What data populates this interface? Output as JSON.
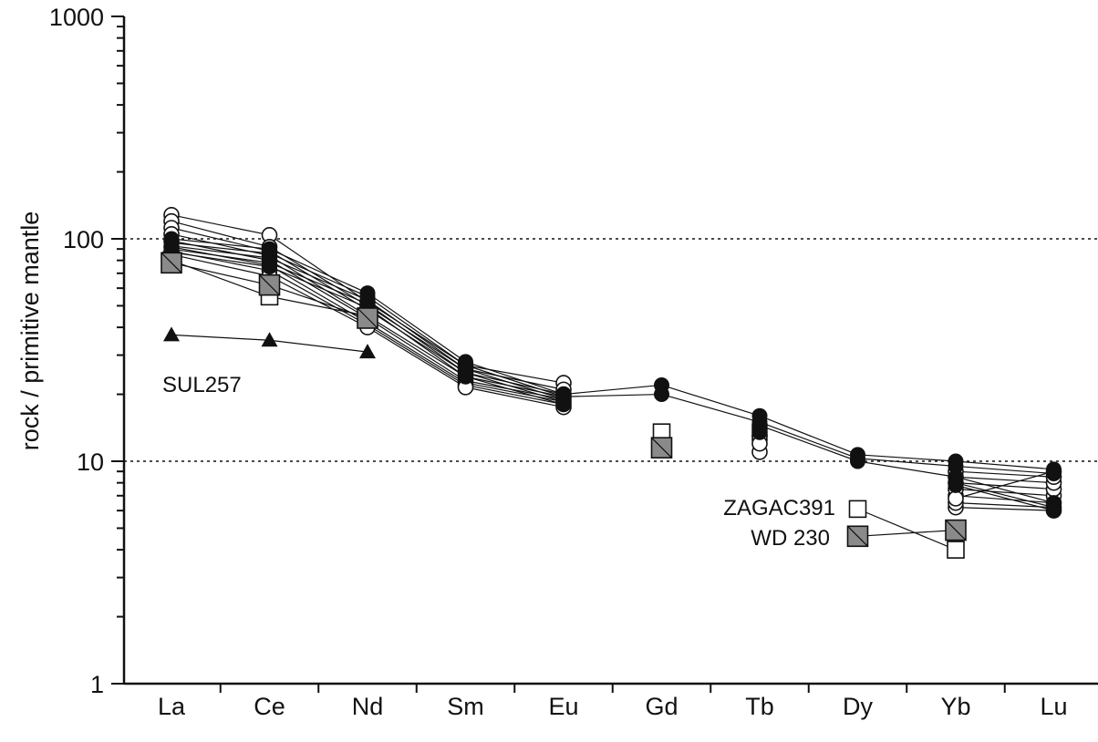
{
  "chart_data": {
    "type": "line",
    "title": "",
    "ylabel": "rock / primitive mantle",
    "xlabel": "",
    "yscale": "log",
    "ylim": [
      1,
      1000
    ],
    "y_ticks": [
      "1",
      "10",
      "100",
      "1000"
    ],
    "gridlines_dashed_at": [
      10,
      100
    ],
    "categories": [
      "La",
      "Ce",
      "Nd",
      "Sm",
      "Eu",
      "Gd",
      "Tb",
      "Dy",
      "Yb",
      "Lu"
    ],
    "series": [
      {
        "group": "open-circle",
        "values": [
          128,
          104,
          52,
          27,
          22.5,
          null,
          11,
          null,
          6.2,
          6.0
        ]
      },
      {
        "group": "open-circle",
        "values": [
          120,
          92,
          50,
          26,
          21,
          null,
          12.5,
          null,
          6.5,
          6.2
        ]
      },
      {
        "group": "open-circle",
        "values": [
          112,
          88,
          48,
          25,
          20,
          null,
          13,
          null,
          7.0,
          6.5
        ]
      },
      {
        "group": "open-circle",
        "values": [
          105,
          84,
          45,
          24,
          19.5,
          null,
          13.5,
          null,
          7.5,
          7.0
        ]
      },
      {
        "group": "open-circle",
        "values": [
          98,
          80,
          44,
          23,
          19,
          null,
          14,
          null,
          8.0,
          7.5
        ]
      },
      {
        "group": "open-circle",
        "values": [
          92,
          76,
          42,
          22.5,
          18.5,
          null,
          14.5,
          null,
          8.5,
          8.0
        ]
      },
      {
        "group": "open-circle",
        "values": [
          88,
          72,
          41,
          22,
          18,
          null,
          13,
          null,
          9.0,
          8.5
        ]
      },
      {
        "group": "open-circle",
        "values": [
          85,
          68,
          40,
          21.5,
          17.5,
          null,
          12,
          null,
          6.8,
          9.0
        ]
      },
      {
        "group": "filled-circle",
        "values": [
          100,
          90,
          57,
          28,
          20,
          22,
          16,
          10.7,
          10.0,
          9.2
        ]
      },
      {
        "group": "filled-circle",
        "values": [
          96,
          86,
          55,
          27,
          19.5,
          20,
          15,
          10.3,
          9.5,
          8.8
        ]
      },
      {
        "group": "filled-circle",
        "values": [
          93,
          82,
          53,
          26,
          19,
          null,
          14.5,
          10.0,
          8.5,
          6.5
        ]
      },
      {
        "group": "filled-circle",
        "values": [
          90,
          78,
          51,
          25,
          18.5,
          null,
          14,
          null,
          8.0,
          6.2
        ]
      },
      {
        "group": "filled-circle",
        "values": [
          87,
          75,
          49,
          24,
          18,
          null,
          13.5,
          null,
          7.8,
          6.0
        ]
      },
      {
        "group": "ZAGAC391",
        "label": "ZAGAC391",
        "values": [
          80,
          55,
          45,
          null,
          null,
          13.5,
          null,
          6.1,
          4.0,
          null
        ]
      },
      {
        "group": "WD 230",
        "label": "WD 230",
        "values": [
          78,
          62,
          44,
          null,
          null,
          11.5,
          null,
          4.6,
          4.9,
          null
        ]
      },
      {
        "group": "SUL257",
        "label": "SUL257",
        "values": [
          37,
          35,
          31,
          null,
          null,
          null,
          null,
          null,
          null,
          null
        ]
      }
    ],
    "annotations": [
      "SUL257",
      "ZAGAC391",
      "WD 230"
    ],
    "colors": {
      "axis": "#111111",
      "grey_square": "#8a8a8a",
      "line": "#111111"
    }
  }
}
